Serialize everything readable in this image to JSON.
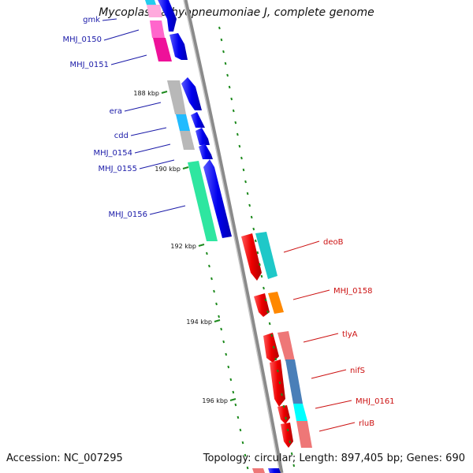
{
  "title": "Mycoplasma hyopneumoniae J, complete genome",
  "footer": {
    "accession": "Accession: NC_007295",
    "stats": "Topology: circular; Length: 897,405 bp; Genes: 690"
  },
  "scale_ticks": [
    {
      "label": "188 kbp"
    },
    {
      "label": "190 kbp"
    },
    {
      "label": "192 kbp"
    },
    {
      "label": "194 kbp"
    },
    {
      "label": "196 kbp"
    }
  ],
  "left_genes": [
    {
      "label": "gmk",
      "color": "#1a1aa8"
    },
    {
      "label": "MHJ_0150",
      "color": "#1a1aa8"
    },
    {
      "label": "MHJ_0151",
      "color": "#1a1aa8"
    },
    {
      "label": "era",
      "color": "#1a1aa8"
    },
    {
      "label": "cdd",
      "color": "#1a1aa8"
    },
    {
      "label": "MHJ_0154",
      "color": "#1a1aa8"
    },
    {
      "label": "MHJ_0155",
      "color": "#1a1aa8"
    },
    {
      "label": "MHJ_0156",
      "color": "#1a1aa8"
    }
  ],
  "right_genes": [
    {
      "label": "deoB",
      "color": "#cc1111"
    },
    {
      "label": "MHJ_0158",
      "color": "#cc1111"
    },
    {
      "label": "tlyA",
      "color": "#cc1111"
    },
    {
      "label": "nifS",
      "color": "#cc1111"
    },
    {
      "label": "MHJ_0161",
      "color": "#cc1111"
    },
    {
      "label": "rluB",
      "color": "#cc1111"
    }
  ],
  "colors": {
    "backbone": "#8a8a8a",
    "forward_strand": "#0000e6",
    "reverse_strand": "#ee0000",
    "gc_dots": "#1d8a1d"
  }
}
